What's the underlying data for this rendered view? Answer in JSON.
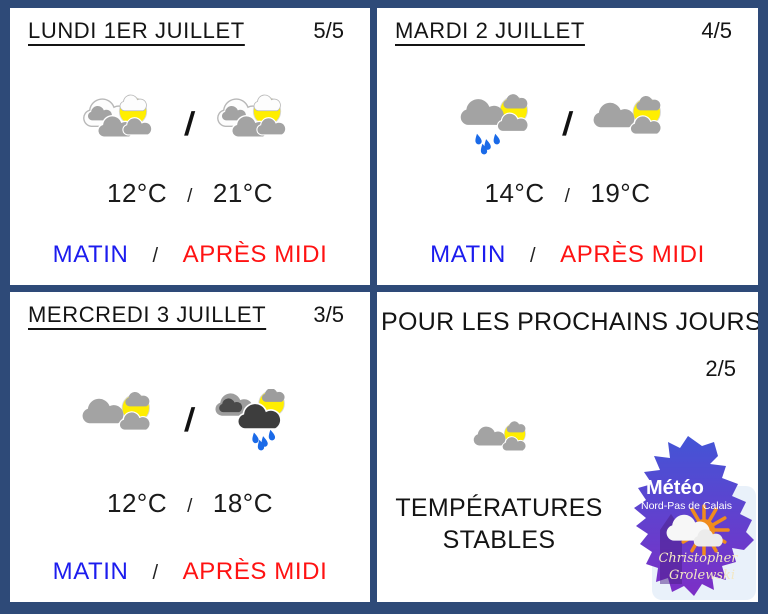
{
  "shared": {
    "slash": "/"
  },
  "colors": {
    "frame": "#2e4a78",
    "card_bg": "#ffffff",
    "text": "#141414",
    "matin_blue": "#1c1cee",
    "apres_red": "#ff1212",
    "sun_yellow": "#ffee00",
    "cloud_gray": "#a3a3a3",
    "cloud_dark": "#3d3d3d",
    "rain_blue": "#1a6ae8",
    "logo_blue": "#4355d6",
    "logo_purple": "#7d2ec6",
    "logo_sun_orange": "#f08c1e"
  },
  "cards": [
    {
      "title": "LUNDI 1ER JUILLET",
      "score": "5/5",
      "morning_icon": "sun-behind-white-clouds-icon",
      "afternoon_icon": "sun-behind-white-clouds-icon",
      "morning_temp": "12°C",
      "afternoon_temp": "21°C",
      "morning_label": "MATIN",
      "afternoon_label": "APRÈS MIDI"
    },
    {
      "title": "MARDI 2 JUILLET",
      "score": "4/5",
      "morning_icon": "sun-gray-clouds-rain-icon",
      "afternoon_icon": "sun-behind-gray-clouds-icon",
      "morning_temp": "14°C",
      "afternoon_temp": "19°C",
      "morning_label": "MATIN",
      "afternoon_label": "APRÈS MIDI"
    },
    {
      "title": "MERCREDI 3 JUILLET",
      "score": "3/5",
      "morning_icon": "sun-behind-gray-clouds-icon",
      "afternoon_icon": "sun-dark-clouds-rain-icon",
      "morning_temp": "12°C",
      "afternoon_temp": "18°C",
      "morning_label": "MATIN",
      "afternoon_label": "APRÈS MIDI"
    }
  ],
  "outlook": {
    "title": "POUR LES PROCHAINS JOURS",
    "score": "2/5",
    "icon": "sun-behind-gray-clouds-icon",
    "line1": "TEMPÉRATURES",
    "line2": "STABLES"
  },
  "logo": {
    "brand": "Météo",
    "region": "Nord-Pas de Calais",
    "signature": [
      "Christopher",
      "Grolewski"
    ]
  }
}
